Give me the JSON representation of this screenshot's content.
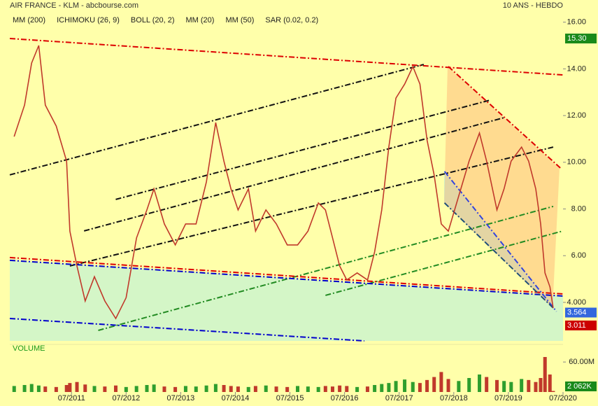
{
  "chart_data": {
    "type": "line",
    "title": "AIR FRANCE - KLM - abcbourse.com",
    "subtitle": "10 ANS - HEBDO",
    "indicators": [
      {
        "name": "MM (200)",
        "color": "#0000cc"
      },
      {
        "name": "ICHIMOKU (26, 9)",
        "color": "#0000cc"
      },
      {
        "name": "BOLL (20, 2)",
        "color": "#ff9933"
      },
      {
        "name": "MM (20)",
        "color": "#008800"
      },
      {
        "name": "MM (50)",
        "color": "#dd0000"
      },
      {
        "name": "SAR (0.02, 0.2)",
        "color": "#dd0000"
      }
    ],
    "x": [
      2010.45,
      2010.64,
      2010.77,
      2010.9,
      2011.02,
      2011.22,
      2011.41,
      2011.47,
      2011.6,
      2011.75,
      2011.92,
      2012.11,
      2012.31,
      2012.5,
      2012.69,
      2012.88,
      2013.01,
      2013.2,
      2013.4,
      2013.59,
      2013.78,
      2013.97,
      2014.14,
      2014.29,
      2014.42,
      2014.55,
      2014.74,
      2014.87,
      2015.06,
      2015.25,
      2015.45,
      2015.64,
      2015.83,
      2016.02,
      2016.15,
      2016.28,
      2016.41,
      2016.54,
      2016.73,
      2016.92,
      2017.05,
      2017.18,
      2017.31,
      2017.44,
      2017.6,
      2017.75,
      2017.88,
      2018.01,
      2018.14,
      2018.27,
      2018.4,
      2018.59,
      2018.78,
      2018.97,
      2019.1,
      2019.29,
      2019.42,
      2019.55,
      2019.74,
      2019.87,
      2020.0,
      2020.09,
      2020.17,
      2020.26,
      2020.32
    ],
    "series": [
      {
        "name": "Cours",
        "color": "#c0392b",
        "values": [
          11.1,
          12.45,
          14.25,
          15.0,
          12.45,
          11.55,
          10.05,
          7.05,
          5.56,
          4.06,
          5.1,
          4.06,
          3.31,
          4.2,
          6.76,
          7.96,
          8.86,
          7.36,
          6.46,
          7.36,
          7.36,
          9.16,
          11.7,
          10.05,
          8.86,
          7.96,
          8.86,
          7.05,
          7.96,
          7.36,
          6.46,
          6.46,
          7.05,
          8.26,
          7.96,
          6.76,
          5.56,
          4.96,
          5.26,
          4.96,
          6.16,
          7.96,
          10.65,
          12.75,
          13.35,
          14.1,
          13.35,
          10.95,
          9.46,
          7.36,
          7.05,
          8.56,
          10.05,
          11.25,
          10.05,
          7.96,
          8.86,
          10.05,
          10.65,
          10.05,
          8.86,
          7.36,
          5.26,
          4.66,
          3.76
        ]
      },
      {
        "name": "Volume",
        "color": "#2e9e2e",
        "axis": "y2",
        "values": [
          12,
          14,
          16,
          13,
          11,
          10,
          14,
          18,
          20,
          15,
          12,
          11,
          13,
          10,
          12,
          14,
          15,
          11,
          10,
          12,
          11,
          13,
          16,
          14,
          12,
          11,
          10,
          12,
          13,
          11,
          10,
          12,
          11,
          10,
          12,
          11,
          13,
          12,
          10,
          11,
          14,
          16,
          18,
          22,
          25,
          20,
          18,
          24,
          30,
          40,
          26,
          22,
          28,
          35,
          30,
          24,
          22,
          20,
          26,
          24,
          20,
          28,
          70,
          35,
          2.062
        ]
      }
    ],
    "trendlines": [
      {
        "color": "#dd0000",
        "x": [
          2010.37,
          2020.5
        ],
        "y": [
          15.3,
          13.74
        ]
      },
      {
        "color": "#111111",
        "x": [
          2010.37,
          2017.95
        ],
        "y": [
          9.46,
          14.19
        ]
      },
      {
        "color": "#111111",
        "x": [
          2012.31,
          2019.16
        ],
        "y": [
          8.41,
          12.66
        ]
      },
      {
        "color": "#111111",
        "x": [
          2011.73,
          2019.42
        ],
        "y": [
          7.06,
          11.91
        ]
      },
      {
        "color": "#111111",
        "x": [
          2011.47,
          2020.32
        ],
        "y": [
          5.56,
          10.65
        ]
      },
      {
        "color": "#228b22",
        "x": [
          2011.99,
          2020.32
        ],
        "y": [
          2.8,
          8.11
        ]
      },
      {
        "color": "#228b22",
        "x": [
          2016.15,
          2020.5
        ],
        "y": [
          4.3,
          7.06
        ]
      },
      {
        "color": "#dd0000",
        "x": [
          2010.37,
          2020.5
        ],
        "y": [
          5.92,
          4.36
        ]
      },
      {
        "color": "#0000cc",
        "x": [
          2010.37,
          2020.5
        ],
        "y": [
          5.8,
          4.27
        ]
      },
      {
        "color": "#0000cc",
        "x": [
          2010.37,
          2016.86
        ],
        "y": [
          3.31,
          2.35
        ]
      },
      {
        "color": "#3344dd",
        "x": [
          2018.33,
          2020.38
        ],
        "y": [
          9.61,
          3.61
        ]
      },
      {
        "color": "#1f4e79",
        "x": [
          2018.33,
          2020.32
        ],
        "y": [
          8.26,
          3.76
        ]
      },
      {
        "color": "#dd0000",
        "x": [
          2018.4,
          2020.45
        ],
        "y": [
          14.1,
          9.76
        ]
      }
    ],
    "value_boxes": [
      {
        "value": 15.3,
        "label": "15.30",
        "color": "#1a8a1a"
      },
      {
        "value": 3.564,
        "label": "3.564",
        "color": "#3366dd"
      },
      {
        "value": 3.011,
        "label": "3.011",
        "color": "#cc0000"
      },
      {
        "value": 2.062,
        "label": "2 062K",
        "color": "#1a8a1a",
        "axis": "y2"
      }
    ],
    "volume_label": "VOLUME",
    "xlim": [
      2010.37,
      2020.5
    ],
    "xticks": [
      {
        "value": 2011.5,
        "label": "07/2011"
      },
      {
        "value": 2012.5,
        "label": "07/2012"
      },
      {
        "value": 2013.5,
        "label": "07/2013"
      },
      {
        "value": 2014.5,
        "label": "07/2014"
      },
      {
        "value": 2015.5,
        "label": "07/2015"
      },
      {
        "value": 2016.5,
        "label": "07/2016"
      },
      {
        "value": 2017.5,
        "label": "07/2017"
      },
      {
        "value": 2018.5,
        "label": "07/2018"
      },
      {
        "value": 2019.5,
        "label": "07/2019"
      },
      {
        "value": 2020.5,
        "label": "07/2020"
      }
    ],
    "ylim": [
      2.35,
      16.35
    ],
    "yticks": [
      {
        "value": 4,
        "label": "4.000"
      },
      {
        "value": 6,
        "label": "6.00"
      },
      {
        "value": 8,
        "label": "8.00"
      },
      {
        "value": 10,
        "label": "10.00"
      },
      {
        "value": 12,
        "label": "12.00"
      },
      {
        "value": 14,
        "label": "14.00"
      },
      {
        "value": 16,
        "label": "16.00"
      }
    ],
    "y2lim": [
      0,
      77
    ],
    "y2ticks": [
      {
        "value": 60,
        "label": "60.00M"
      }
    ]
  }
}
